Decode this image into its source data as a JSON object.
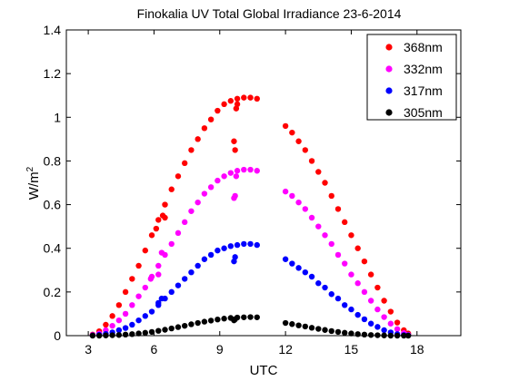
{
  "chart_data": {
    "type": "scatter",
    "title": "Finokalia UV Total Global Irradiance 23-6-2014",
    "xlabel": "UTC",
    "ylabel": "W/m",
    "ylabel_superscript": "2",
    "xlim": [
      2,
      20
    ],
    "ylim": [
      0,
      1.4
    ],
    "xticks": [
      3,
      6,
      9,
      12,
      15,
      18
    ],
    "yticks": [
      0,
      0.2,
      0.4,
      0.6,
      0.8,
      1,
      1.2,
      1.4
    ],
    "ytick_labels": [
      "0",
      "0.2",
      "0.4",
      "0.6",
      "0.8",
      "1",
      "1.2",
      "1.4"
    ],
    "grid": false,
    "legend_position": "top-right",
    "series": [
      {
        "name": "368nm",
        "color": "#ff0000",
        "points": [
          [
            3.2,
            0.005
          ],
          [
            3.5,
            0.02
          ],
          [
            3.8,
            0.05
          ],
          [
            4.1,
            0.09
          ],
          [
            4.4,
            0.14
          ],
          [
            4.7,
            0.2
          ],
          [
            5.0,
            0.26
          ],
          [
            5.3,
            0.32
          ],
          [
            5.6,
            0.39
          ],
          [
            5.9,
            0.46
          ],
          [
            6.2,
            0.53
          ],
          [
            6.5,
            0.6
          ],
          [
            6.8,
            0.67
          ],
          [
            7.1,
            0.73
          ],
          [
            7.4,
            0.79
          ],
          [
            7.7,
            0.85
          ],
          [
            8.0,
            0.9
          ],
          [
            8.3,
            0.95
          ],
          [
            8.6,
            0.99
          ],
          [
            8.9,
            1.03
          ],
          [
            9.2,
            1.06
          ],
          [
            9.5,
            1.075
          ],
          [
            9.8,
            1.085
          ],
          [
            10.1,
            1.09
          ],
          [
            10.4,
            1.09
          ],
          [
            10.7,
            1.085
          ],
          [
            6.1,
            0.49
          ],
          [
            6.4,
            0.55
          ],
          [
            6.5,
            0.54
          ],
          [
            9.65,
            0.89
          ],
          [
            9.7,
            0.85
          ],
          [
            9.75,
            1.04
          ],
          [
            9.8,
            1.06
          ],
          [
            12.0,
            0.96
          ],
          [
            12.3,
            0.93
          ],
          [
            12.6,
            0.89
          ],
          [
            12.9,
            0.85
          ],
          [
            13.2,
            0.8
          ],
          [
            13.5,
            0.75
          ],
          [
            13.8,
            0.7
          ],
          [
            14.1,
            0.64
          ],
          [
            14.4,
            0.58
          ],
          [
            14.7,
            0.52
          ],
          [
            15.0,
            0.46
          ],
          [
            15.3,
            0.4
          ],
          [
            15.6,
            0.34
          ],
          [
            15.9,
            0.28
          ],
          [
            16.2,
            0.22
          ],
          [
            16.5,
            0.16
          ],
          [
            16.8,
            0.11
          ],
          [
            17.1,
            0.06
          ],
          [
            17.4,
            0.025
          ],
          [
            17.6,
            0.01
          ]
        ]
      },
      {
        "name": "332nm",
        "color": "#ff00ff",
        "points": [
          [
            3.2,
            0.003
          ],
          [
            3.5,
            0.01
          ],
          [
            3.8,
            0.025
          ],
          [
            4.1,
            0.045
          ],
          [
            4.4,
            0.07
          ],
          [
            4.7,
            0.1
          ],
          [
            5.0,
            0.14
          ],
          [
            5.3,
            0.18
          ],
          [
            5.6,
            0.22
          ],
          [
            5.9,
            0.27
          ],
          [
            6.2,
            0.32
          ],
          [
            6.5,
            0.37
          ],
          [
            6.8,
            0.42
          ],
          [
            7.1,
            0.47
          ],
          [
            7.4,
            0.52
          ],
          [
            7.7,
            0.57
          ],
          [
            8.0,
            0.61
          ],
          [
            8.3,
            0.65
          ],
          [
            8.6,
            0.68
          ],
          [
            8.9,
            0.71
          ],
          [
            9.2,
            0.73
          ],
          [
            9.5,
            0.745
          ],
          [
            9.8,
            0.755
          ],
          [
            10.1,
            0.76
          ],
          [
            10.4,
            0.76
          ],
          [
            10.7,
            0.755
          ],
          [
            5.85,
            0.26
          ],
          [
            6.2,
            0.28
          ],
          [
            6.35,
            0.38
          ],
          [
            9.65,
            0.63
          ],
          [
            9.7,
            0.64
          ],
          [
            9.75,
            0.73
          ],
          [
            12.0,
            0.66
          ],
          [
            12.3,
            0.64
          ],
          [
            12.6,
            0.61
          ],
          [
            12.9,
            0.58
          ],
          [
            13.2,
            0.54
          ],
          [
            13.5,
            0.5
          ],
          [
            13.8,
            0.46
          ],
          [
            14.1,
            0.42
          ],
          [
            14.4,
            0.37
          ],
          [
            14.7,
            0.33
          ],
          [
            15.0,
            0.28
          ],
          [
            15.3,
            0.24
          ],
          [
            15.6,
            0.2
          ],
          [
            15.9,
            0.16
          ],
          [
            16.2,
            0.12
          ],
          [
            16.5,
            0.085
          ],
          [
            16.8,
            0.055
          ],
          [
            17.1,
            0.03
          ],
          [
            17.4,
            0.012
          ],
          [
            17.6,
            0.004
          ]
        ]
      },
      {
        "name": "317nm",
        "color": "#0000ff",
        "points": [
          [
            3.2,
            0.001
          ],
          [
            3.5,
            0.004
          ],
          [
            3.8,
            0.008
          ],
          [
            4.1,
            0.015
          ],
          [
            4.4,
            0.025
          ],
          [
            4.7,
            0.035
          ],
          [
            5.0,
            0.05
          ],
          [
            5.3,
            0.07
          ],
          [
            5.6,
            0.09
          ],
          [
            5.9,
            0.11
          ],
          [
            6.2,
            0.14
          ],
          [
            6.5,
            0.17
          ],
          [
            6.8,
            0.2
          ],
          [
            7.1,
            0.23
          ],
          [
            7.4,
            0.26
          ],
          [
            7.7,
            0.29
          ],
          [
            8.0,
            0.32
          ],
          [
            8.3,
            0.35
          ],
          [
            8.6,
            0.37
          ],
          [
            8.9,
            0.39
          ],
          [
            9.2,
            0.4
          ],
          [
            9.5,
            0.41
          ],
          [
            9.8,
            0.415
          ],
          [
            10.1,
            0.42
          ],
          [
            10.4,
            0.42
          ],
          [
            10.7,
            0.415
          ],
          [
            6.2,
            0.15
          ],
          [
            6.35,
            0.17
          ],
          [
            9.65,
            0.34
          ],
          [
            9.7,
            0.36
          ],
          [
            12.0,
            0.35
          ],
          [
            12.3,
            0.33
          ],
          [
            12.6,
            0.31
          ],
          [
            12.9,
            0.29
          ],
          [
            13.2,
            0.27
          ],
          [
            13.5,
            0.24
          ],
          [
            13.8,
            0.22
          ],
          [
            14.1,
            0.19
          ],
          [
            14.4,
            0.17
          ],
          [
            14.7,
            0.14
          ],
          [
            15.0,
            0.12
          ],
          [
            15.3,
            0.095
          ],
          [
            15.6,
            0.075
          ],
          [
            15.9,
            0.055
          ],
          [
            16.2,
            0.04
          ],
          [
            16.5,
            0.025
          ],
          [
            16.8,
            0.015
          ],
          [
            17.1,
            0.007
          ],
          [
            17.4,
            0.003
          ],
          [
            17.6,
            0.001
          ]
        ]
      },
      {
        "name": "305nm",
        "color": "#000000",
        "points": [
          [
            3.2,
            0.0
          ],
          [
            3.5,
            0.0
          ],
          [
            3.8,
            0.001
          ],
          [
            4.1,
            0.002
          ],
          [
            4.4,
            0.003
          ],
          [
            4.7,
            0.005
          ],
          [
            5.0,
            0.007
          ],
          [
            5.3,
            0.01
          ],
          [
            5.6,
            0.013
          ],
          [
            5.9,
            0.017
          ],
          [
            6.2,
            0.022
          ],
          [
            6.5,
            0.027
          ],
          [
            6.8,
            0.033
          ],
          [
            7.1,
            0.039
          ],
          [
            7.4,
            0.045
          ],
          [
            7.7,
            0.052
          ],
          [
            8.0,
            0.058
          ],
          [
            8.3,
            0.064
          ],
          [
            8.6,
            0.069
          ],
          [
            8.9,
            0.074
          ],
          [
            9.2,
            0.078
          ],
          [
            9.5,
            0.081
          ],
          [
            9.8,
            0.083
          ],
          [
            10.1,
            0.084
          ],
          [
            10.4,
            0.085
          ],
          [
            10.7,
            0.084
          ],
          [
            9.65,
            0.07
          ],
          [
            9.7,
            0.075
          ],
          [
            12.0,
            0.058
          ],
          [
            12.3,
            0.053
          ],
          [
            12.6,
            0.047
          ],
          [
            12.9,
            0.042
          ],
          [
            13.2,
            0.036
          ],
          [
            13.5,
            0.031
          ],
          [
            13.8,
            0.026
          ],
          [
            14.1,
            0.021
          ],
          [
            14.4,
            0.017
          ],
          [
            14.7,
            0.013
          ],
          [
            15.0,
            0.01
          ],
          [
            15.3,
            0.007
          ],
          [
            15.6,
            0.005
          ],
          [
            15.9,
            0.003
          ],
          [
            16.2,
            0.002
          ],
          [
            16.5,
            0.001
          ],
          [
            16.8,
            0.0
          ],
          [
            17.1,
            0.0
          ],
          [
            17.4,
            0.0
          ],
          [
            17.6,
            0.0
          ]
        ]
      }
    ]
  }
}
